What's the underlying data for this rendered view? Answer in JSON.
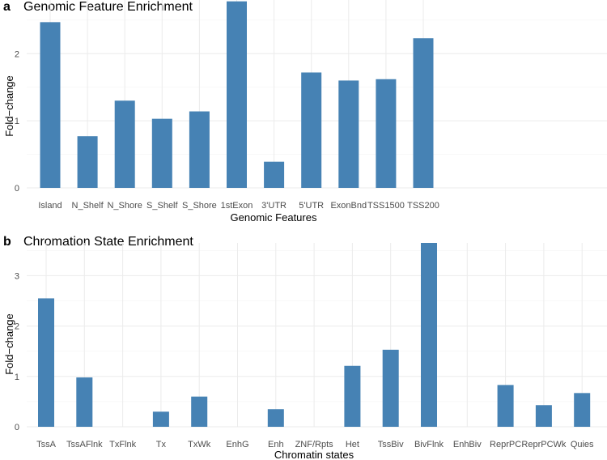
{
  "chart_data": [
    {
      "panel": "a",
      "type": "bar",
      "title": "Genomic Feature Enrichment",
      "xlabel": "Genomic Features",
      "ylabel": "Fold−change",
      "categories": [
        "Island",
        "N_Shelf",
        "N_Shore",
        "S_Shelf",
        "S_Shore",
        "1stExon",
        "3'UTR",
        "5'UTR",
        "ExonBnd",
        "TSS1500",
        "TSS200"
      ],
      "values": [
        2.47,
        0.77,
        1.3,
        1.03,
        1.14,
        2.78,
        0.39,
        1.72,
        1.6,
        1.62,
        2.23
      ],
      "yticks": [
        0,
        1,
        2
      ],
      "ylim": [
        0,
        2.8
      ],
      "color": "#4682b4"
    },
    {
      "panel": "b",
      "type": "bar",
      "title": "Chromation State Enrichment",
      "xlabel": "Chromatin states",
      "ylabel": "Fold−change",
      "categories": [
        "TssA",
        "TssAFlnk",
        "TxFlnk",
        "Tx",
        "TxWk",
        "EnhG",
        "Enh",
        "ZNF/Rpts",
        "Het",
        "TssBiv",
        "BivFlnk",
        "EnhBiv",
        "ReprPC",
        "ReprPCWk",
        "Quies"
      ],
      "values": [
        2.55,
        0.98,
        0,
        0.3,
        0.6,
        0,
        0.35,
        0,
        1.21,
        1.53,
        3.65,
        0,
        0.83,
        0.43,
        0.67
      ],
      "yticks": [
        0,
        1,
        2,
        3
      ],
      "ylim": [
        0,
        3.65
      ],
      "color": "#4682b4"
    }
  ]
}
